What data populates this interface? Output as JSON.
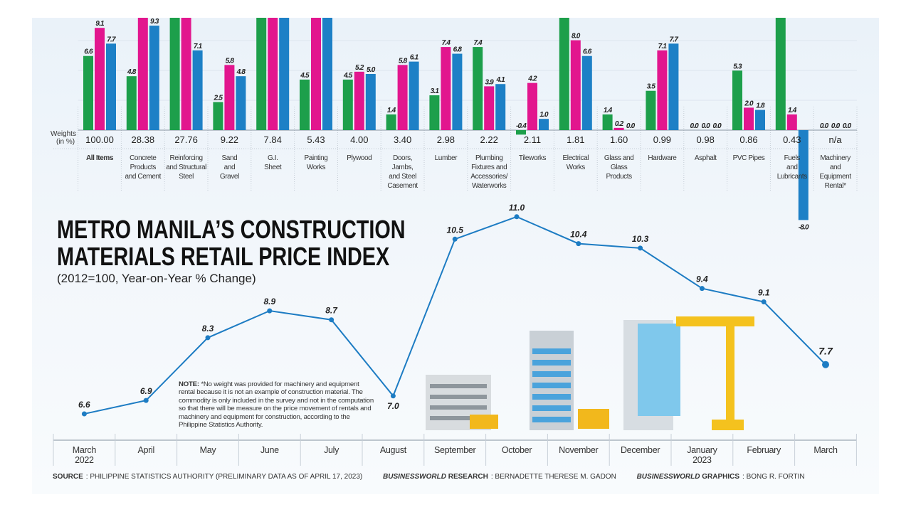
{
  "title_line1": "METRO MANILA’S CONSTRUCTION",
  "title_line2": "MATERIALS RETAIL PRICE INDEX",
  "subtitle": "(2012=100, Year-on-Year % Change)",
  "note": {
    "label": "NOTE:",
    "text": "*No weight was provided for machinery and equipment rental because it is not an example of construction material. The commodity is only included in the survey and not in the computation so that there will be measure on the price movement of rentals and machinery and equipment for construction, according to the Philippine Statistics Authority."
  },
  "footer": {
    "source_label": "SOURCE",
    "source_text": ": PHILIPPINE STATISTICS AUTHORITY (PRELIMINARY DATA AS OF APRIL 17, 2023)",
    "research_brand": "BUSINESSWORLD",
    "research_label": " RESEARCH",
    "research_text": ": BERNADETTE THERESE M. GADON",
    "graphics_brand": "BUSINESSWORLD",
    "graphics_label": " GRAPHICS",
    "graphics_text": ": BONG R. FORTIN"
  },
  "colors": {
    "green": "#1d9f4b",
    "magenta": "#e2168e",
    "blue": "#1d80c6",
    "line": "#1d7cc3"
  },
  "chart_data": [
    {
      "type": "bar",
      "weights_label": "Weights (in %)",
      "categories": [
        "All Items",
        "Concrete Products and Cement",
        "Reinforcing and Structural Steel",
        "Sand and Gravel",
        "G.I. Sheet",
        "Painting Works",
        "Plywood",
        "Doors, Jambs, and Steel Casement",
        "Lumber",
        "Plumbing Fixtures and Accessories/ Waterworks",
        "Tileworks",
        "Electrical Works",
        "Glass and Glass Products",
        "Hardware",
        "Asphalt",
        "PVC Pipes",
        "Fuels and Lubricants",
        "Machinery and Equipment Rental*"
      ],
      "category_lines": [
        [
          "All Items"
        ],
        [
          "Concrete",
          "Products",
          "and Cement"
        ],
        [
          "Reinforcing",
          "and Structural",
          "Steel"
        ],
        [
          "Sand",
          "and",
          "Gravel"
        ],
        [
          "G.I.",
          "Sheet"
        ],
        [
          "Painting",
          "Works"
        ],
        [
          "Plywood"
        ],
        [
          "Doors,",
          "Jambs,",
          "and Steel",
          "Casement"
        ],
        [
          "Lumber"
        ],
        [
          "Plumbing",
          "Fixtures and",
          "Accessories/",
          "Waterworks"
        ],
        [
          "Tileworks"
        ],
        [
          "Electrical",
          "Works"
        ],
        [
          "Glass and",
          "Glass",
          "Products"
        ],
        [
          "Hardware"
        ],
        [
          "Asphalt"
        ],
        [
          "PVC Pipes"
        ],
        [
          "Fuels",
          "and",
          "Lubricants"
        ],
        [
          "Machinery",
          "and",
          "Equipment",
          "Rental*"
        ]
      ],
      "weights": [
        "100.00",
        "28.38",
        "27.76",
        "9.22",
        "7.84",
        "5.43",
        "4.00",
        "3.40",
        "2.98",
        "2.22",
        "2.11",
        "1.81",
        "1.60",
        "0.99",
        "0.98",
        "0.86",
        "0.43",
        "n/a"
      ],
      "series": [
        {
          "color": "#1d9f4b",
          "values": [
            6.6,
            4.8,
            null,
            2.5,
            null,
            4.5,
            4.5,
            1.4,
            3.1,
            7.4,
            -0.4,
            null,
            1.4,
            3.5,
            0.0,
            5.3,
            null,
            0.0
          ]
        },
        {
          "color": "#e2168e",
          "values": [
            9.1,
            null,
            null,
            5.8,
            null,
            null,
            5.2,
            5.8,
            7.4,
            3.9,
            4.2,
            8.0,
            0.2,
            7.1,
            0.0,
            2.0,
            1.4,
            0.0
          ]
        },
        {
          "color": "#1d80c6",
          "values": [
            7.7,
            9.3,
            7.1,
            4.8,
            null,
            null,
            5.0,
            6.1,
            6.8,
            4.1,
            1.0,
            6.6,
            0.0,
            7.7,
            0.0,
            1.8,
            -8.0,
            0.0
          ]
        }
      ],
      "note": "bars with null values extend beyond the top edge of the image (cropped, label not visible)"
    },
    {
      "type": "line",
      "categories": [
        "March 2022",
        "April",
        "May",
        "June",
        "July",
        "August",
        "September",
        "October",
        "November",
        "December",
        "January 2023",
        "February",
        "March"
      ],
      "category_lines": [
        [
          "March",
          "2022"
        ],
        [
          "April"
        ],
        [
          "May"
        ],
        [
          "June"
        ],
        [
          "July"
        ],
        [
          "August"
        ],
        [
          "September"
        ],
        [
          "October"
        ],
        [
          "November"
        ],
        [
          "December"
        ],
        [
          "January",
          "2023"
        ],
        [
          "February"
        ],
        [
          "March"
        ]
      ],
      "values": [
        6.6,
        6.9,
        8.3,
        8.9,
        8.7,
        7.0,
        10.5,
        11.0,
        10.4,
        10.3,
        9.4,
        9.1,
        7.7
      ],
      "grid": false
    }
  ]
}
